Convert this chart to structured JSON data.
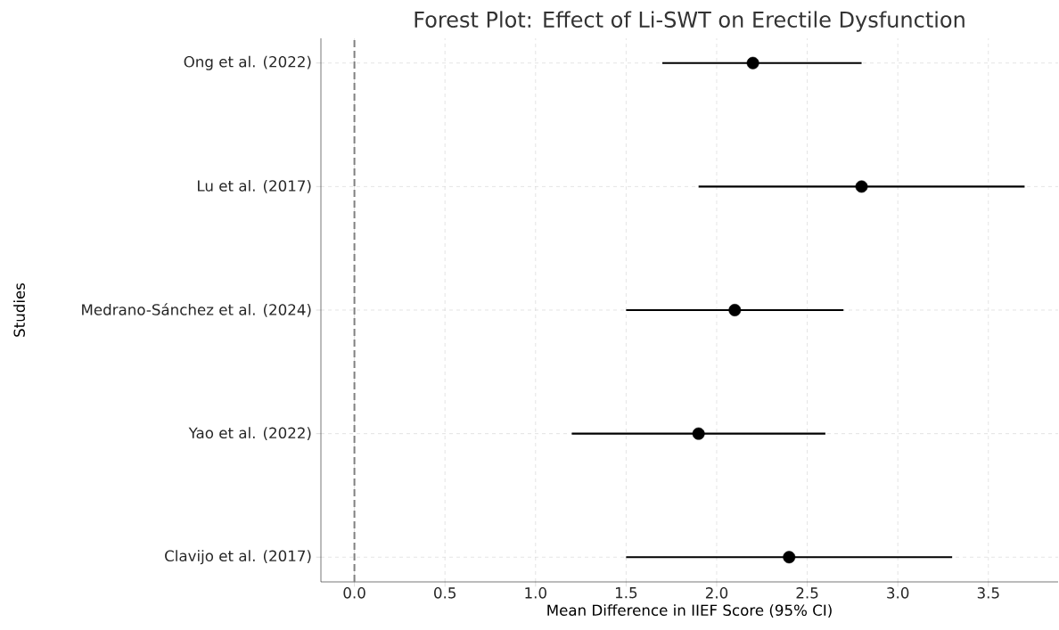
{
  "chart_data": {
    "type": "scatter",
    "orientation": "horizontal",
    "title": "Forest Plot: Effect of Li-SWT on Erectile Dysfunction",
    "xlabel": "Mean Difference in IIEF Score (95% CI)",
    "ylabel": "Studies",
    "categories": [
      "Ong et al. (2022)",
      "Lu et al. (2017)",
      "Medrano-Sánchez et al. (2024)",
      "Yao et al. (2022)",
      "Clavijo et al. (2017)"
    ],
    "values": [
      2.2,
      2.8,
      2.1,
      1.9,
      2.4
    ],
    "errors": [
      [
        1.7,
        2.8
      ],
      [
        1.9,
        3.7
      ],
      [
        1.5,
        2.7
      ],
      [
        1.2,
        2.6
      ],
      [
        1.5,
        3.3
      ]
    ],
    "color": "#000000",
    "grid": true,
    "xlim": [
      -0.185,
      3.885
    ],
    "xticks": [
      {
        "value": 0,
        "label": "0.0"
      },
      {
        "value": 0.5,
        "label": "0.5"
      },
      {
        "value": 1,
        "label": "1.0"
      },
      {
        "value": 1.5,
        "label": "1.5"
      },
      {
        "value": 2,
        "label": "2.0"
      },
      {
        "value": 2.5,
        "label": "2.5"
      },
      {
        "value": 3,
        "label": "3.0"
      },
      {
        "value": 3.5,
        "label": "3.5"
      }
    ],
    "ref_lines": [
      {
        "axis": "x",
        "value": 0,
        "color": "#808080",
        "line_style": "dashed"
      }
    ]
  }
}
